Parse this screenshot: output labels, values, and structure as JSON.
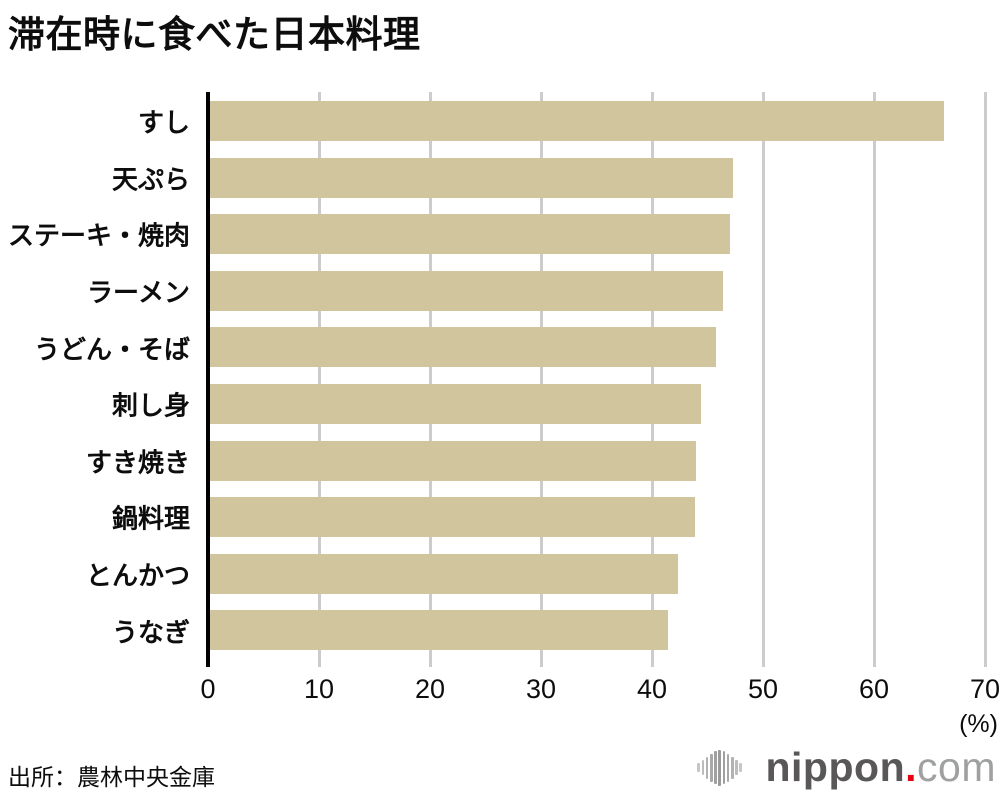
{
  "title": "滞在時に食べた日本料理",
  "source": "出所：農林中央金庫",
  "unit_label": "(%)",
  "logo": {
    "name": "nippon",
    "dot": ".",
    "tld": "com"
  },
  "colors": {
    "bar": "#d1c59e",
    "gridline": "#cccccc",
    "axis": "#000000",
    "logo_brand": "#595757",
    "logo_dot": "#e60012",
    "logo_tld": "#9fa0a0"
  },
  "chart_data": {
    "type": "bar",
    "orientation": "horizontal",
    "title": "滞在時に食べた日本料理",
    "categories": [
      "すし",
      "天ぷら",
      "ステーキ・焼肉",
      "ラーメン",
      "うどん・そば",
      "刺し身",
      "すき焼き",
      "鍋料理",
      "とんかつ",
      "うなぎ"
    ],
    "values": [
      66.3,
      47.3,
      47.0,
      46.4,
      45.8,
      44.4,
      44.0,
      43.9,
      42.3,
      41.4
    ],
    "xlabel": "(%)",
    "ylabel": "",
    "xlim": [
      0,
      70
    ],
    "xticks": [
      0,
      10,
      20,
      30,
      40,
      50,
      60,
      70
    ],
    "grid": true,
    "legend_position": "none"
  }
}
